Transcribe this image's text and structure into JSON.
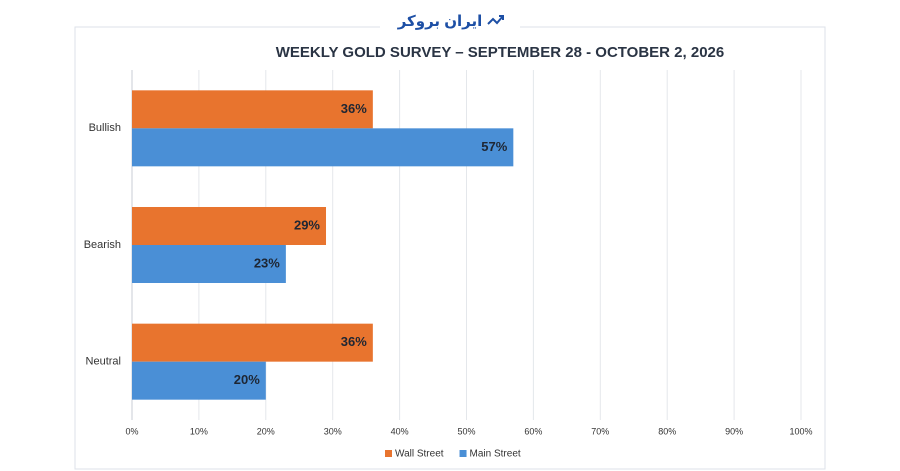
{
  "watermark": "ایران بروکر",
  "chart_data": {
    "type": "hbar",
    "title": "WEEKLY GOLD SURVEY – SEPTEMBER 28 - OCTOBER 2, 2026",
    "categories": [
      "Bullish",
      "Bearish",
      "Neutral"
    ],
    "series": [
      {
        "name": "Wall Street",
        "color": "#e8742e",
        "values": [
          36,
          29,
          36
        ],
        "value_labels": [
          "36%",
          "29%",
          "36%"
        ]
      },
      {
        "name": "Main Street",
        "color": "#4a8fd6",
        "values": [
          57,
          23,
          20
        ],
        "value_labels": [
          "57%",
          "23%",
          "20%"
        ]
      }
    ],
    "xlim": [
      0,
      100
    ],
    "xticks": [
      {
        "value": 0,
        "label": "0%"
      },
      {
        "value": 10,
        "label": "10%"
      },
      {
        "value": 20,
        "label": "20%"
      },
      {
        "value": 30,
        "label": "30%"
      },
      {
        "value": 40,
        "label": "40%"
      },
      {
        "value": 50,
        "label": "50%"
      },
      {
        "value": 60,
        "label": "60%"
      },
      {
        "value": 70,
        "label": "70%"
      },
      {
        "value": 80,
        "label": "80%"
      },
      {
        "value": 90,
        "label": "90%"
      },
      {
        "value": 100,
        "label": "100%"
      }
    ],
    "grid": true,
    "legend": "bottom"
  }
}
